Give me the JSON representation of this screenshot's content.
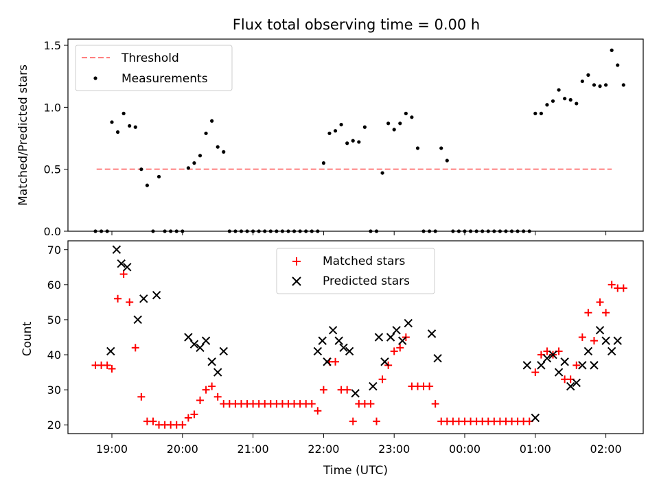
{
  "title": "Flux total observing time = 0.00 h",
  "colors": {
    "threshold": "#ff7f7f",
    "measurement": "#000000",
    "matched": "#ff0000",
    "predicted": "#000000"
  },
  "chart_data": [
    {
      "type": "scatter",
      "ylabel": "Matched/Predicted stars",
      "ylim": [
        0,
        1.55
      ],
      "yticks": [
        "0.0",
        "0.5",
        "1.0",
        "1.5"
      ],
      "legend": {
        "placement": "top-left",
        "entries": [
          "Threshold",
          "Measurements"
        ]
      },
      "threshold": {
        "name": "Threshold",
        "value": 0.5,
        "x_range": [
          "18:47",
          "02:05"
        ]
      },
      "series": [
        {
          "name": "Measurements",
          "marker": "dot",
          "x": [
            "18:46",
            "18:51",
            "18:56",
            "19:00",
            "19:05",
            "19:10",
            "19:15",
            "19:20",
            "19:25",
            "19:30",
            "19:35",
            "19:40",
            "19:45",
            "19:50",
            "19:55",
            "20:00",
            "20:05",
            "20:10",
            "20:15",
            "20:20",
            "20:25",
            "20:30",
            "20:35",
            "20:40",
            "20:45",
            "20:50",
            "20:55",
            "21:00",
            "21:05",
            "21:10",
            "21:15",
            "21:20",
            "21:25",
            "21:30",
            "21:35",
            "21:40",
            "21:45",
            "21:50",
            "21:55",
            "22:00",
            "22:05",
            "22:10",
            "22:15",
            "22:20",
            "22:25",
            "22:30",
            "22:35",
            "22:40",
            "22:45",
            "22:50",
            "22:55",
            "23:00",
            "23:05",
            "23:10",
            "23:15",
            "23:20",
            "23:25",
            "23:30",
            "23:35",
            "23:40",
            "23:45",
            "23:50",
            "23:55",
            "00:00",
            "00:05",
            "00:10",
            "00:15",
            "00:20",
            "00:25",
            "00:30",
            "00:35",
            "00:40",
            "00:45",
            "00:50",
            "00:55",
            "01:00",
            "01:05",
            "01:10",
            "01:15",
            "01:20",
            "01:25",
            "01:30",
            "01:35",
            "01:40",
            "01:45",
            "01:50",
            "01:55",
            "02:00",
            "02:05",
            "02:10",
            "02:15"
          ],
          "y": [
            0,
            0,
            0,
            0.88,
            0.8,
            0.95,
            0.85,
            0.84,
            0.5,
            0.37,
            0,
            0.44,
            0,
            0,
            0,
            0,
            0.51,
            0.55,
            0.61,
            0.79,
            0.89,
            0.68,
            0.64,
            0,
            0,
            0,
            0,
            0,
            0,
            0,
            0,
            0,
            0,
            0,
            0,
            0,
            0,
            0,
            0,
            0.55,
            0.79,
            0.81,
            0.86,
            0.71,
            0.73,
            0.72,
            0.84,
            0,
            0,
            0.47,
            0.87,
            0.82,
            0.87,
            0.95,
            0.92,
            0.67,
            0,
            0,
            0,
            0.67,
            0.57,
            0,
            0,
            0,
            0,
            0,
            0,
            0,
            0,
            0,
            0,
            0,
            0,
            0,
            0,
            0.95,
            0.95,
            1.02,
            1.05,
            1.14,
            1.07,
            1.06,
            1.03,
            1.21,
            1.26,
            1.18,
            1.17,
            1.18,
            1.46,
            1.34,
            1.18
          ]
        }
      ]
    },
    {
      "type": "scatter",
      "xlabel": "Time (UTC)",
      "ylabel": "Count",
      "ylim": [
        17.5,
        72.5
      ],
      "yticks": [
        "20",
        "30",
        "40",
        "50",
        "60",
        "70"
      ],
      "xticks": [
        "19:00",
        "20:00",
        "21:00",
        "22:00",
        "23:00",
        "00:00",
        "01:00",
        "02:00"
      ],
      "legend": {
        "placement": "upper-center",
        "entries": [
          "Matched stars",
          "Predicted stars"
        ]
      },
      "series": [
        {
          "name": "Matched stars",
          "marker": "plus",
          "x": [
            "18:46",
            "18:51",
            "18:56",
            "19:00",
            "19:05",
            "19:10",
            "19:15",
            "19:20",
            "19:25",
            "19:30",
            "19:35",
            "19:40",
            "19:45",
            "19:50",
            "19:55",
            "20:00",
            "20:05",
            "20:10",
            "20:15",
            "20:20",
            "20:25",
            "20:30",
            "20:35",
            "20:40",
            "20:45",
            "20:50",
            "20:55",
            "21:00",
            "21:05",
            "21:10",
            "21:15",
            "21:20",
            "21:25",
            "21:30",
            "21:35",
            "21:40",
            "21:45",
            "21:50",
            "21:55",
            "22:00",
            "22:05",
            "22:10",
            "22:15",
            "22:20",
            "22:25",
            "22:30",
            "22:35",
            "22:40",
            "22:45",
            "22:50",
            "22:55",
            "23:00",
            "23:05",
            "23:10",
            "23:15",
            "23:20",
            "23:25",
            "23:30",
            "23:35",
            "23:40",
            "23:45",
            "23:50",
            "23:55",
            "00:00",
            "00:05",
            "00:10",
            "00:15",
            "00:20",
            "00:25",
            "00:30",
            "00:35",
            "00:40",
            "00:45",
            "00:50",
            "00:55",
            "01:00",
            "01:05",
            "01:10",
            "01:15",
            "01:20",
            "01:25",
            "01:30",
            "01:35",
            "01:40",
            "01:45",
            "01:50",
            "01:55",
            "02:00",
            "02:05",
            "02:10",
            "02:15"
          ],
          "y": [
            37,
            37,
            37,
            36,
            56,
            63,
            55,
            42,
            28,
            21,
            21,
            20,
            20,
            20,
            20,
            20,
            22,
            23,
            27,
            30,
            31,
            28,
            26,
            26,
            26,
            26,
            26,
            26,
            26,
            26,
            26,
            26,
            26,
            26,
            26,
            26,
            26,
            26,
            24,
            30,
            38,
            38,
            30,
            30,
            21,
            26,
            26,
            26,
            21,
            33,
            37,
            41,
            42,
            45,
            31,
            31,
            31,
            31,
            26,
            21,
            21,
            21,
            21,
            21,
            21,
            21,
            21,
            21,
            21,
            21,
            21,
            21,
            21,
            21,
            21,
            35,
            40,
            41,
            40,
            41,
            33,
            33,
            37,
            45,
            52,
            44,
            55,
            52,
            60,
            59,
            59
          ]
        },
        {
          "name": "Predicted stars",
          "marker": "x",
          "x": [
            "18:59",
            "19:04",
            "19:08",
            "19:13",
            "19:22",
            "19:27",
            "19:38",
            "20:05",
            "20:10",
            "20:15",
            "20:20",
            "20:25",
            "20:30",
            "20:35",
            "21:55",
            "21:59",
            "22:03",
            "22:08",
            "22:13",
            "22:17",
            "22:22",
            "22:27",
            "22:42",
            "22:47",
            "22:52",
            "22:57",
            "23:02",
            "23:07",
            "23:12",
            "23:32",
            "23:37",
            "00:53",
            "01:00",
            "01:05",
            "01:10",
            "01:15",
            "01:20",
            "01:25",
            "01:30",
            "01:35",
            "01:40",
            "01:45",
            "01:50",
            "01:55",
            "02:00",
            "02:05",
            "02:10"
          ],
          "y": [
            41,
            70,
            66,
            65,
            50,
            56,
            57,
            45,
            43,
            42,
            44,
            38,
            35,
            41,
            41,
            44,
            38,
            47,
            44,
            42,
            41,
            29,
            31,
            45,
            38,
            45,
            47,
            44,
            49,
            46,
            39,
            37,
            22,
            37,
            39,
            40,
            35,
            38,
            31,
            32,
            37,
            41,
            37,
            47,
            44,
            41,
            44
          ]
        }
      ]
    }
  ]
}
